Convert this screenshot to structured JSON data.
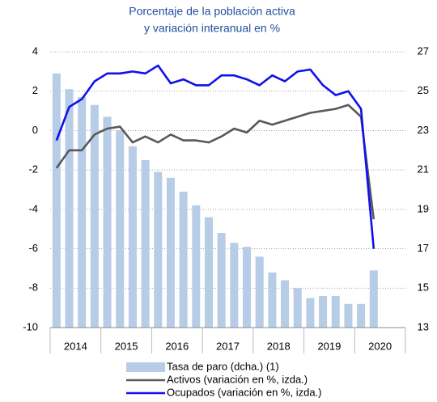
{
  "chart_data": {
    "type": "bar_line",
    "title": [
      "Porcentaje de la población activa",
      "y variación interanual en %"
    ],
    "categories": [
      null,
      null,
      null,
      null,
      null,
      null,
      null,
      null,
      null,
      null,
      null,
      null,
      null,
      null,
      null,
      null,
      null,
      null,
      null,
      null,
      null,
      null,
      null,
      null,
      null,
      null
    ],
    "year_labels": [
      "2014",
      "2015",
      "2016",
      "2017",
      "2018",
      "2019",
      "2020"
    ],
    "series": [
      {
        "name": "Tasa de paro (dcha.) (1)",
        "color": "#b7cce6",
        "axis": "y2",
        "kind": "bar",
        "values": [
          25.9,
          25.1,
          24.7,
          24.3,
          23.7,
          23.0,
          22.2,
          21.5,
          20.9,
          20.6,
          19.9,
          19.2,
          18.6,
          17.8,
          17.3,
          17.1,
          16.6,
          15.8,
          15.4,
          15.0,
          14.5,
          14.6,
          14.6,
          14.2,
          14.2,
          15.9
        ]
      },
      {
        "name": "Activos (variación en %, izda.)",
        "color": "#595959",
        "kind": "line",
        "values": [
          -1.9,
          -1.0,
          -1.0,
          -0.2,
          0.1,
          0.2,
          -0.6,
          -0.3,
          -0.6,
          -0.2,
          -0.5,
          -0.5,
          -0.6,
          -0.3,
          0.1,
          -0.1,
          0.5,
          0.3,
          0.5,
          0.7,
          0.9,
          1.0,
          1.1,
          1.3,
          0.7,
          -4.5
        ]
      },
      {
        "name": "Ocupados (variación en %, izda.)",
        "color": "#1010ee",
        "kind": "line",
        "values": [
          -0.5,
          1.2,
          1.6,
          2.5,
          2.9,
          2.9,
          3.0,
          2.9,
          3.3,
          2.4,
          2.6,
          2.3,
          2.3,
          2.8,
          2.8,
          2.6,
          2.3,
          2.8,
          2.5,
          3.0,
          3.1,
          2.3,
          1.8,
          2.0,
          1.1,
          -6.0
        ]
      }
    ],
    "ylim": [
      -10,
      4
    ],
    "yticks": [
      -10,
      -8,
      -6,
      -4,
      -2,
      0,
      2,
      4
    ],
    "y2lim": [
      13,
      27
    ],
    "y2ticks": [
      13,
      15,
      17,
      19,
      21,
      23,
      25,
      27
    ],
    "grid": true
  }
}
